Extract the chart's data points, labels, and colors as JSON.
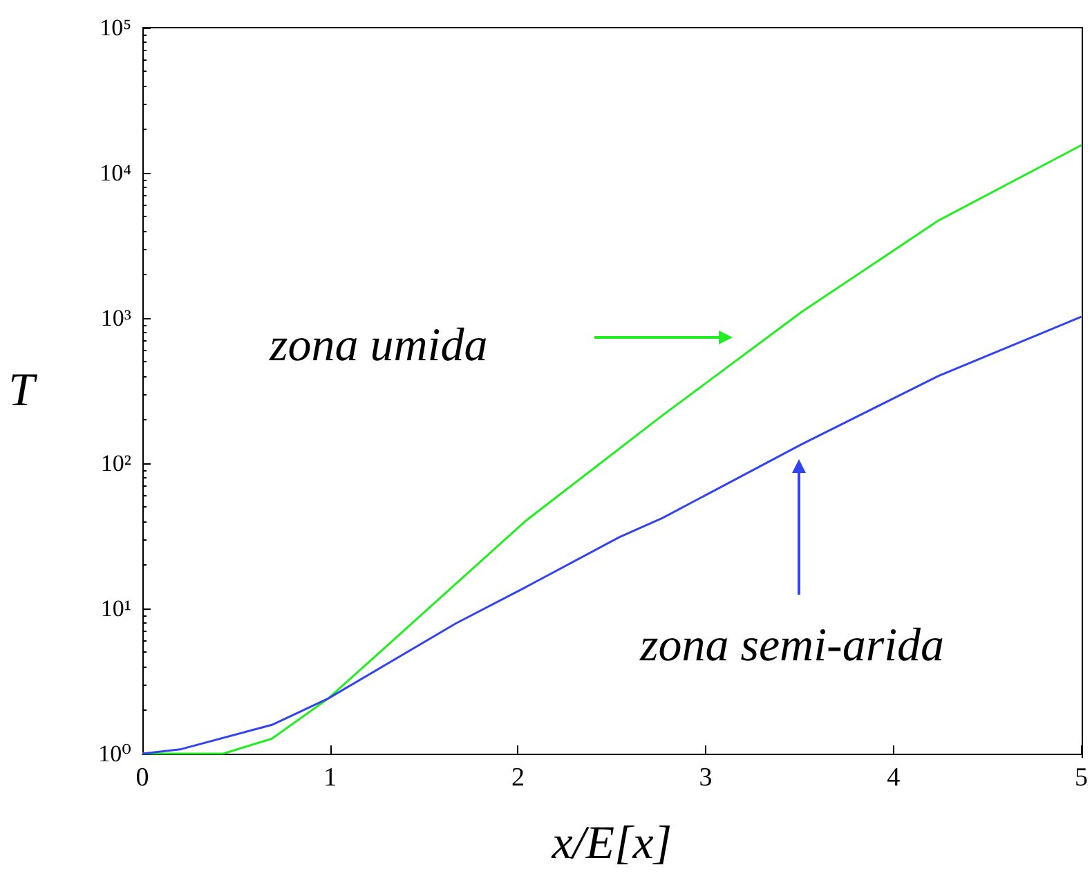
{
  "chart_data": {
    "type": "line",
    "xlabel": "x/E[x]",
    "ylabel": "T",
    "log": "y",
    "grid": false,
    "legend": "left",
    "marker": "none",
    "line_style": "solid",
    "xlim": [
      0,
      5
    ],
    "xticks": [
      0,
      1,
      2,
      3,
      4,
      5
    ],
    "ylim": [
      1,
      100000
    ],
    "yticks": [
      {
        "value": 1,
        "label": "10⁰"
      },
      {
        "value": 10,
        "label": "10¹"
      },
      {
        "value": 100,
        "label": "10²"
      },
      {
        "value": 1000,
        "label": "10³"
      },
      {
        "value": 10000,
        "label": "10⁴"
      },
      {
        "value": 100000,
        "label": "10⁵"
      }
    ],
    "series": [
      {
        "name": "zona umida",
        "color": "#22ee22",
        "x": [
          0,
          0.43,
          0.69,
          0.99,
          1.3,
          2.04,
          2.77,
          3.51,
          4.24,
          5
        ],
        "values": [
          1,
          1,
          1.27,
          2.4,
          5.5,
          40,
          214,
          1100,
          4700,
          15500
        ]
      },
      {
        "name": "zona semi-arida",
        "color": "#3344ee",
        "x": [
          0,
          0.2,
          0.69,
          0.99,
          1.67,
          2.04,
          2.54,
          2.77,
          3.51,
          4.24,
          5
        ],
        "values": [
          1,
          1.07,
          1.58,
          2.4,
          7.9,
          14,
          31,
          42,
          135,
          400,
          1020
        ]
      }
    ]
  }
}
